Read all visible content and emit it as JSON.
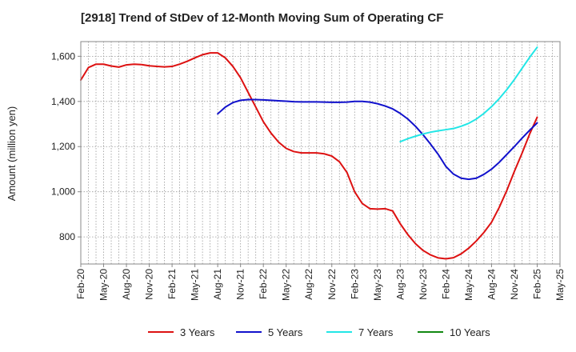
{
  "chart_data": {
    "type": "line",
    "title": "[2918]  Trend of StDev of 12-Month Moving Sum of Operating CF",
    "xlabel": "",
    "ylabel": "Amount (million yen)",
    "ylim": [
      680,
      1665
    ],
    "yticks": [
      800,
      1000,
      1200,
      1400,
      1600
    ],
    "ytick_labels": [
      "800",
      "1,000",
      "1,200",
      "1,400",
      "1,600"
    ],
    "xlim": [
      "2020-02",
      "2025-05"
    ],
    "xtick_labels": [
      "Feb-20",
      "May-20",
      "Aug-20",
      "Nov-20",
      "Feb-21",
      "May-21",
      "Aug-21",
      "Nov-21",
      "Feb-22",
      "May-22",
      "Aug-22",
      "Nov-22",
      "Feb-23",
      "May-23",
      "Aug-23",
      "Nov-23",
      "Feb-24",
      "May-24",
      "Aug-24",
      "Nov-24",
      "Feb-25",
      "May-25"
    ],
    "grid": true,
    "legend_position": "bottom",
    "series": [
      {
        "name": "3 Years",
        "color": "#dd1111",
        "x": [
          "2020-02",
          "2020-03",
          "2020-04",
          "2020-05",
          "2020-06",
          "2020-07",
          "2020-08",
          "2020-09",
          "2020-10",
          "2020-11",
          "2020-12",
          "2021-01",
          "2021-02",
          "2021-03",
          "2021-04",
          "2021-05",
          "2021-06",
          "2021-07",
          "2021-08",
          "2021-09",
          "2021-10",
          "2021-11",
          "2021-12",
          "2022-01",
          "2022-02",
          "2022-03",
          "2022-04",
          "2022-05",
          "2022-06",
          "2022-07",
          "2022-08",
          "2022-09",
          "2022-10",
          "2022-11",
          "2022-12",
          "2023-01",
          "2023-02",
          "2023-03",
          "2023-04",
          "2023-05",
          "2023-06",
          "2023-07",
          "2023-08",
          "2023-09",
          "2023-10",
          "2023-11",
          "2023-12",
          "2024-01",
          "2024-02",
          "2024-03",
          "2024-04",
          "2024-05",
          "2024-06",
          "2024-07",
          "2024-08",
          "2024-09",
          "2024-10",
          "2024-11",
          "2024-12",
          "2025-01",
          "2025-02"
        ],
        "values": [
          1495,
          1550,
          1565,
          1565,
          1557,
          1552,
          1562,
          1565,
          1563,
          1558,
          1555,
          1553,
          1555,
          1565,
          1578,
          1593,
          1607,
          1615,
          1615,
          1593,
          1555,
          1505,
          1440,
          1375,
          1310,
          1260,
          1220,
          1192,
          1178,
          1172,
          1172,
          1172,
          1168,
          1158,
          1133,
          1085,
          1000,
          948,
          925,
          923,
          925,
          915,
          858,
          810,
          770,
          740,
          720,
          707,
          703,
          708,
          725,
          750,
          782,
          820,
          865,
          930,
          1005,
          1090,
          1170,
          1255,
          1330
        ]
      },
      {
        "name": "5 Years",
        "color": "#1111cc",
        "x": [
          "2021-08",
          "2021-09",
          "2021-10",
          "2021-11",
          "2021-12",
          "2022-01",
          "2022-02",
          "2022-03",
          "2022-04",
          "2022-05",
          "2022-06",
          "2022-07",
          "2022-08",
          "2022-09",
          "2022-10",
          "2022-11",
          "2022-12",
          "2023-01",
          "2023-02",
          "2023-03",
          "2023-04",
          "2023-05",
          "2023-06",
          "2023-07",
          "2023-08",
          "2023-09",
          "2023-10",
          "2023-11",
          "2023-12",
          "2024-01",
          "2024-02",
          "2024-03",
          "2024-04",
          "2024-05",
          "2024-06",
          "2024-07",
          "2024-08",
          "2024-09",
          "2024-10",
          "2024-11",
          "2024-12",
          "2025-01",
          "2025-02"
        ],
        "values": [
          1345,
          1375,
          1395,
          1405,
          1408,
          1408,
          1407,
          1405,
          1403,
          1401,
          1399,
          1398,
          1398,
          1398,
          1397,
          1396,
          1396,
          1397,
          1400,
          1400,
          1397,
          1390,
          1380,
          1367,
          1347,
          1322,
          1290,
          1252,
          1210,
          1165,
          1112,
          1078,
          1060,
          1055,
          1060,
          1077,
          1100,
          1130,
          1165,
          1200,
          1237,
          1272,
          1305
        ]
      },
      {
        "name": "7 Years",
        "color": "#22e6e6",
        "x": [
          "2023-08",
          "2023-09",
          "2023-10",
          "2023-11",
          "2023-12",
          "2024-01",
          "2024-02",
          "2024-03",
          "2024-04",
          "2024-05",
          "2024-06",
          "2024-07",
          "2024-08",
          "2024-09",
          "2024-10",
          "2024-11",
          "2024-12",
          "2025-01",
          "2025-02"
        ],
        "values": [
          1222,
          1235,
          1246,
          1256,
          1264,
          1270,
          1275,
          1280,
          1290,
          1303,
          1322,
          1347,
          1377,
          1412,
          1452,
          1497,
          1546,
          1595,
          1640
        ]
      },
      {
        "name": "10 Years",
        "color": "#118811",
        "x": [],
        "values": []
      }
    ]
  }
}
